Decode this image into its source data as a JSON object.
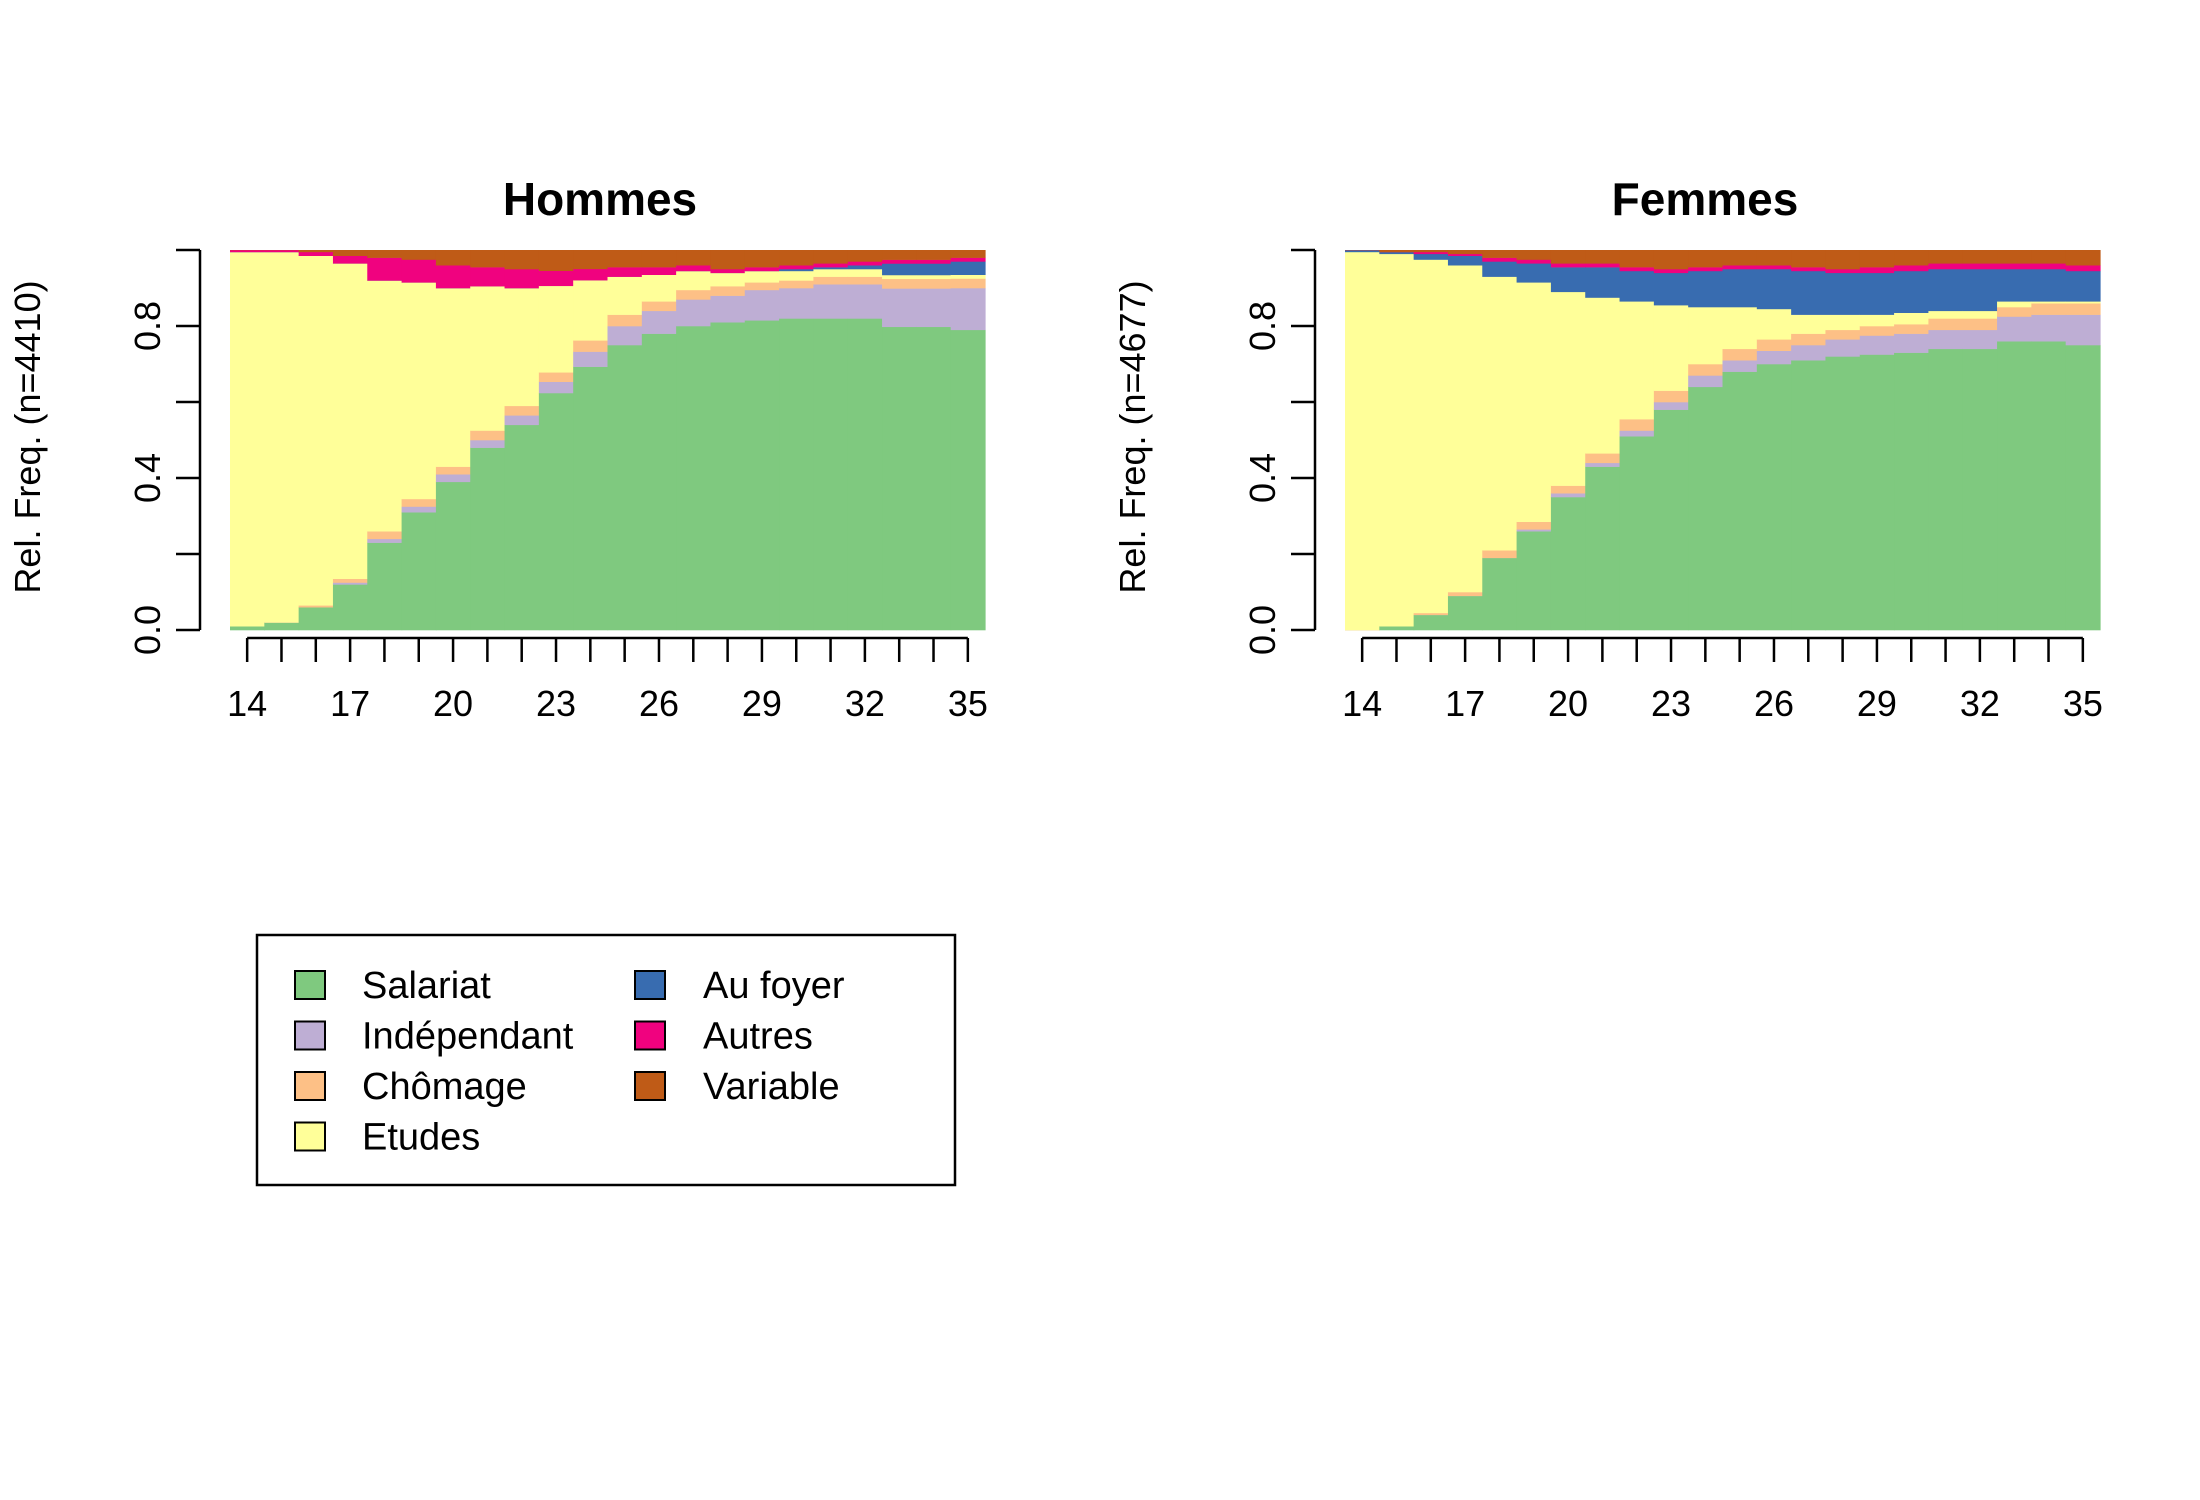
{
  "legend": {
    "items": [
      {
        "label": "Salariat",
        "color": "#7fc97f"
      },
      {
        "label": "Indépendant",
        "color": "#beaed4"
      },
      {
        "label": "Chômage",
        "color": "#fdc086"
      },
      {
        "label": "Etudes",
        "color": "#ffff99"
      },
      {
        "label": "Au foyer",
        "color": "#386cb0"
      },
      {
        "label": "Autres",
        "color": "#f0027f"
      },
      {
        "label": "Variable",
        "color": "#bf5b17"
      }
    ]
  },
  "chart_data": [
    {
      "type": "area",
      "title": "Hommes",
      "ylabel": "Rel. Freq. (n=4410)",
      "ylim": [
        0,
        1
      ],
      "x": [
        14,
        15,
        16,
        17,
        18,
        19,
        20,
        21,
        22,
        23,
        24,
        25,
        26,
        27,
        28,
        29,
        30,
        31,
        32,
        33,
        34,
        35
      ],
      "xticks": [
        "14",
        "17",
        "20",
        "23",
        "26",
        "29",
        "32",
        "35"
      ],
      "yticks": [
        "0.0",
        "0.4",
        "0.8"
      ],
      "series": [
        {
          "name": "Salariat",
          "values": [
            0.01,
            0.02,
            0.06,
            0.12,
            0.23,
            0.31,
            0.39,
            0.48,
            0.54,
            0.63,
            0.7,
            0.75,
            0.78,
            0.8,
            0.81,
            0.815,
            0.82,
            0.82,
            0.82,
            0.79,
            0.79,
            0.79
          ]
        },
        {
          "name": "Indépendant",
          "values": [
            0,
            0,
            0,
            0.005,
            0.01,
            0.015,
            0.02,
            0.02,
            0.025,
            0.03,
            0.04,
            0.05,
            0.06,
            0.07,
            0.07,
            0.08,
            0.08,
            0.09,
            0.09,
            0.1,
            0.1,
            0.11
          ]
        },
        {
          "name": "Chômage",
          "values": [
            0,
            0,
            0.005,
            0.01,
            0.02,
            0.02,
            0.02,
            0.025,
            0.025,
            0.025,
            0.03,
            0.03,
            0.025,
            0.025,
            0.025,
            0.02,
            0.02,
            0.02,
            0.02,
            0.025,
            0.025,
            0.025
          ]
        },
        {
          "name": "Etudes",
          "values": [
            0.985,
            0.975,
            0.92,
            0.83,
            0.66,
            0.57,
            0.47,
            0.38,
            0.31,
            0.23,
            0.16,
            0.1,
            0.07,
            0.05,
            0.035,
            0.03,
            0.025,
            0.02,
            0.02,
            0.01,
            0.01,
            0.01
          ]
        },
        {
          "name": "Au foyer",
          "values": [
            0,
            0,
            0,
            0,
            0,
            0,
            0,
            0,
            0,
            0,
            0,
            0,
            0,
            0,
            0,
            0,
            0.005,
            0.005,
            0.01,
            0.03,
            0.03,
            0.035
          ]
        },
        {
          "name": "Autres",
          "values": [
            0.005,
            0.005,
            0.01,
            0.02,
            0.06,
            0.06,
            0.06,
            0.05,
            0.05,
            0.04,
            0.03,
            0.025,
            0.02,
            0.015,
            0.01,
            0.01,
            0.01,
            0.01,
            0.01,
            0.01,
            0.01,
            0.01
          ]
        },
        {
          "name": "Variable",
          "values": [
            0,
            0,
            0.005,
            0.015,
            0.02,
            0.025,
            0.04,
            0.045,
            0.05,
            0.055,
            0.05,
            0.045,
            0.045,
            0.04,
            0.05,
            0.045,
            0.04,
            0.035,
            0.03,
            0.025,
            0.025,
            0.02
          ]
        }
      ]
    },
    {
      "type": "area",
      "title": "Femmes",
      "ylabel": "Rel. Freq. (n=4677)",
      "ylim": [
        0,
        1
      ],
      "x": [
        14,
        15,
        16,
        17,
        18,
        19,
        20,
        21,
        22,
        23,
        24,
        25,
        26,
        27,
        28,
        29,
        30,
        31,
        32,
        33,
        34,
        35
      ],
      "xticks": [
        "14",
        "17",
        "20",
        "23",
        "26",
        "29",
        "32",
        "35"
      ],
      "yticks": [
        "0.0",
        "0.4",
        "0.8"
      ],
      "series": [
        {
          "name": "Salariat",
          "values": [
            0,
            0.01,
            0.04,
            0.09,
            0.19,
            0.26,
            0.35,
            0.43,
            0.51,
            0.58,
            0.64,
            0.68,
            0.7,
            0.71,
            0.72,
            0.725,
            0.73,
            0.74,
            0.74,
            0.76,
            0.76,
            0.75
          ]
        },
        {
          "name": "Indépendant",
          "values": [
            0,
            0,
            0,
            0,
            0,
            0.005,
            0.01,
            0.01,
            0.015,
            0.02,
            0.03,
            0.03,
            0.035,
            0.04,
            0.045,
            0.05,
            0.05,
            0.05,
            0.05,
            0.065,
            0.07,
            0.08
          ]
        },
        {
          "name": "Chômage",
          "values": [
            0,
            0,
            0.005,
            0.01,
            0.02,
            0.02,
            0.02,
            0.025,
            0.03,
            0.03,
            0.03,
            0.03,
            0.03,
            0.03,
            0.025,
            0.025,
            0.025,
            0.03,
            0.03,
            0.025,
            0.03,
            0.03
          ]
        },
        {
          "name": "Etudes",
          "values": [
            0.995,
            0.98,
            0.93,
            0.86,
            0.72,
            0.63,
            0.51,
            0.41,
            0.31,
            0.225,
            0.15,
            0.11,
            0.08,
            0.05,
            0.04,
            0.03,
            0.03,
            0.02,
            0.02,
            0.015,
            0.005,
            0.005
          ]
        },
        {
          "name": "Au foyer",
          "values": [
            0.005,
            0.005,
            0.015,
            0.025,
            0.04,
            0.05,
            0.065,
            0.08,
            0.08,
            0.085,
            0.095,
            0.1,
            0.105,
            0.115,
            0.11,
            0.11,
            0.11,
            0.11,
            0.11,
            0.085,
            0.085,
            0.08
          ]
        },
        {
          "name": "Autres",
          "values": [
            0,
            0,
            0.005,
            0.005,
            0.01,
            0.01,
            0.01,
            0.01,
            0.01,
            0.01,
            0.01,
            0.01,
            0.01,
            0.01,
            0.01,
            0.015,
            0.015,
            0.015,
            0.015,
            0.015,
            0.015,
            0.015
          ]
        },
        {
          "name": "Variable",
          "values": [
            0,
            0.005,
            0.005,
            0.01,
            0.02,
            0.025,
            0.035,
            0.035,
            0.045,
            0.05,
            0.045,
            0.04,
            0.04,
            0.045,
            0.05,
            0.045,
            0.04,
            0.035,
            0.035,
            0.035,
            0.035,
            0.04
          ]
        }
      ]
    }
  ]
}
